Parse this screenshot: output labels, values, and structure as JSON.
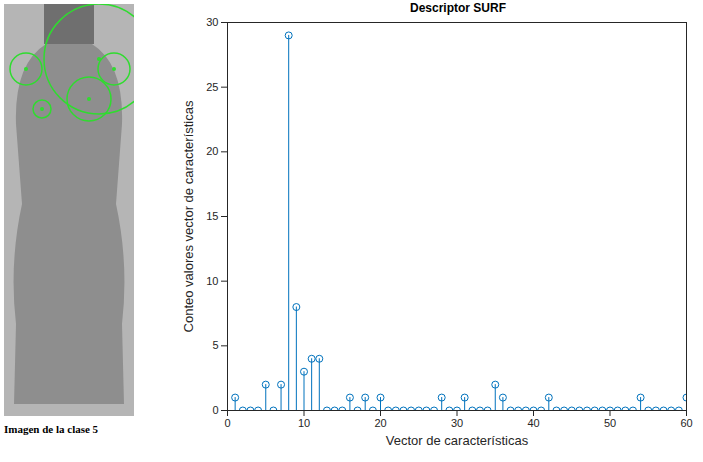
{
  "chart_data": {
    "type": "stem",
    "title": "Descriptor SURF",
    "caption": "Imagen de la clase 5",
    "x_label": "Vector de características",
    "y_label": "Conteo valores vector de características",
    "x": [
      1,
      2,
      3,
      4,
      5,
      6,
      7,
      8,
      9,
      10,
      11,
      12,
      13,
      14,
      15,
      16,
      17,
      18,
      19,
      20,
      21,
      22,
      23,
      24,
      25,
      26,
      27,
      28,
      29,
      30,
      31,
      32,
      33,
      34,
      35,
      36,
      37,
      38,
      39,
      40,
      41,
      42,
      43,
      44,
      45,
      46,
      47,
      48,
      49,
      50,
      51,
      52,
      53,
      54,
      55,
      56,
      57,
      58,
      59,
      60
    ],
    "values": [
      1,
      0,
      0,
      0,
      2,
      0,
      2,
      29,
      8,
      3,
      4,
      4,
      0,
      0,
      0,
      1,
      0,
      1,
      0,
      1,
      0,
      0,
      0,
      0,
      0,
      0,
      0,
      1,
      0,
      0,
      1,
      0,
      0,
      0,
      2,
      1,
      0,
      0,
      0,
      0,
      0,
      1,
      0,
      0,
      0,
      0,
      0,
      0,
      0,
      0,
      0,
      0,
      0,
      1,
      0,
      0,
      0,
      0,
      0,
      1
    ],
    "color": "#0072bd",
    "marker": "circle",
    "xlim": [
      0,
      60
    ],
    "xticks": [
      0,
      10,
      20,
      30,
      40,
      50,
      60
    ],
    "ylim": [
      0,
      30
    ],
    "yticks": [
      0,
      5,
      10,
      15,
      20,
      25,
      30
    ],
    "grid": false
  }
}
